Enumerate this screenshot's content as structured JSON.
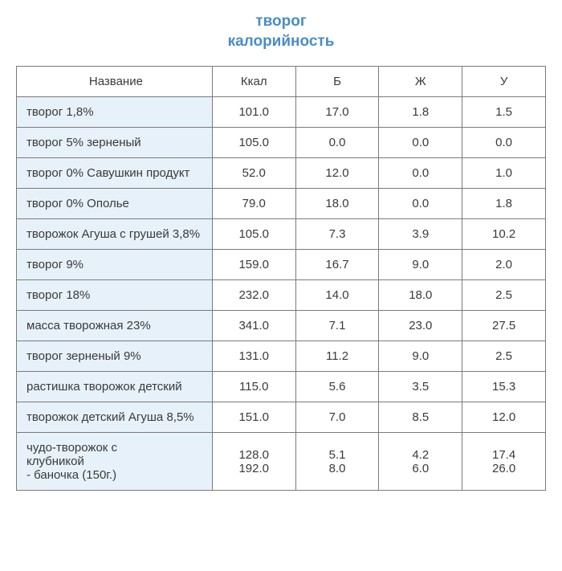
{
  "title_line1": "творог",
  "title_line2": "калорийность",
  "headers": {
    "name": "Название",
    "kcal": "Ккал",
    "b": "Б",
    "zh": "Ж",
    "u": "У"
  },
  "rows": [
    {
      "name": "творог 1,8%",
      "kcal": "101.0",
      "b": "17.0",
      "zh": "1.8",
      "u": "1.5"
    },
    {
      "name": "творог 5% зерненый",
      "kcal": "105.0",
      "b": "0.0",
      "zh": "0.0",
      "u": "0.0"
    },
    {
      "name": "творог 0% Савушкин продукт",
      "kcal": "52.0",
      "b": "12.0",
      "zh": "0.0",
      "u": "1.0"
    },
    {
      "name": "творог 0% Ополье",
      "kcal": "79.0",
      "b": "18.0",
      "zh": "0.0",
      "u": "1.8"
    },
    {
      "name": "творожок Агуша с грушей 3,8%",
      "kcal": "105.0",
      "b": "7.3",
      "zh": "3.9",
      "u": "10.2"
    },
    {
      "name": "творог 9%",
      "kcal": "159.0",
      "b": "16.7",
      "zh": "9.0",
      "u": "2.0"
    },
    {
      "name": "творог 18%",
      "kcal": "232.0",
      "b": "14.0",
      "zh": "18.0",
      "u": "2.5"
    },
    {
      "name": "масса творожная 23%",
      "kcal": "341.0",
      "b": "7.1",
      "zh": "23.0",
      "u": "27.5"
    },
    {
      "name": "творог зерненый 9%",
      "kcal": "131.0",
      "b": "11.2",
      "zh": "9.0",
      "u": "2.5"
    },
    {
      "name": "растишка творожок детский",
      "kcal": "115.0",
      "b": "5.6",
      "zh": "3.5",
      "u": "15.3"
    },
    {
      "name": "творожок детский Агуша 8,5%",
      "kcal": "151.0",
      "b": "7.0",
      "zh": "8.5",
      "u": "12.0"
    }
  ],
  "last": {
    "name_l1": "чудо-творожок с",
    "name_l2": "клубникой",
    "name_l3": " - баночка (150г.)",
    "kcal_l1": "128.0",
    "kcal_l2": "192.0",
    "b_l1": "5.1",
    "b_l2": "8.0",
    "zh_l1": "4.2",
    "zh_l2": "6.0",
    "u_l1": "17.4",
    "u_l2": "26.0"
  }
}
